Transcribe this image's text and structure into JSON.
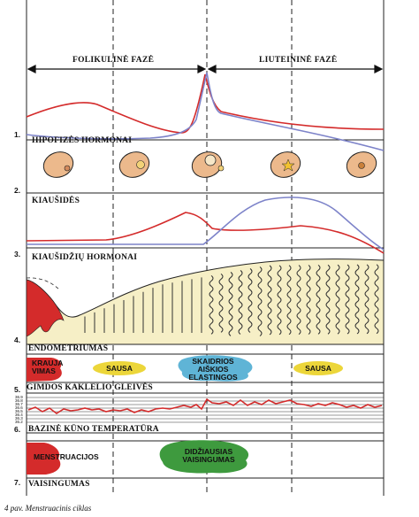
{
  "phases": {
    "follicular": "FOLIKULINĖ FAZĖ",
    "luteal": "LIUTEININĖ FAZĖ"
  },
  "sections": [
    {
      "num": "1.",
      "label": "HIPOFIZĖS HORMONAI"
    },
    {
      "num": "2.",
      "label": "KIAUŠIDĖS"
    },
    {
      "num": "3.",
      "label": "KIAUŠIDŽIŲ HORMONAI"
    },
    {
      "num": "4.",
      "label": "ENDOMETRIUMAS"
    },
    {
      "num": "5.",
      "label": "GIMDOS KAKLELIO GLEIVĖS"
    },
    {
      "num": "6.",
      "label": "BAZINĖ KŪNO TEMPERATŪRA"
    },
    {
      "num": "7.",
      "label": "VAISINGUMAS"
    }
  ],
  "mucus": {
    "bleeding": "KRAUJA VIMAS",
    "dry1": "SAUSA",
    "stretchy": "SKAIDRIOS AIŠKIOS ELASTINGOS",
    "dry2": "SAUSA"
  },
  "fertility": {
    "menstruation": "MENSTRUACIJOS",
    "peak": "DIDŽIAUSIAS VAISINGUMAS"
  },
  "temperature_ticks": [
    "36.9",
    "36.8",
    "36.7",
    "36.6",
    "36.5",
    "36.4",
    "36.3",
    "36.2"
  ],
  "caption": "4 pav. Menstruacinis ciklas",
  "colors": {
    "red": "#d42b2b",
    "blue": "#7d83c9",
    "yellow": "#ecd63a",
    "green": "#3e9a3e",
    "tissue": "#f6efc6"
  }
}
